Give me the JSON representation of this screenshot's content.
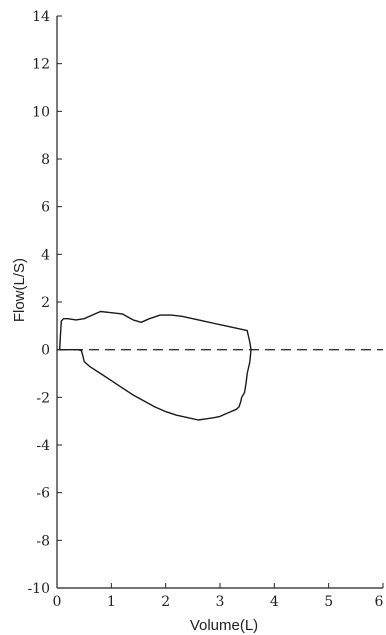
{
  "chart_data": {
    "type": "line",
    "title": "",
    "xlabel": "Volume(L)",
    "ylabel": "Flow(L/S)",
    "xlim": [
      0,
      6
    ],
    "ylim": [
      -10,
      14
    ],
    "x_ticks": [
      0,
      1,
      2,
      3,
      4,
      5,
      6
    ],
    "x_tick_labels": [
      "0",
      "1",
      "2",
      "3",
      "4",
      "5",
      "6"
    ],
    "y_ticks": [
      -10,
      -8,
      -6,
      -4,
      -2,
      0,
      2,
      4,
      6,
      8,
      10,
      12,
      14
    ],
    "y_tick_labels": [
      "-10",
      "-8",
      "-6",
      "-4",
      "-2",
      "0",
      "2",
      "4",
      "6",
      "8",
      "10",
      "12",
      "14"
    ],
    "reference_line": {
      "y": 0,
      "style": "dashed"
    },
    "grid": false,
    "legend": "none",
    "series": [
      {
        "x": [
          0.05,
          0.06,
          0.08,
          0.12,
          0.2,
          0.35,
          0.5,
          0.7,
          0.8,
          1.0,
          1.2,
          1.4,
          1.55,
          1.7,
          1.9,
          2.1,
          2.3,
          2.5,
          2.7,
          2.9,
          3.1,
          3.3,
          3.5,
          3.55,
          3.57,
          3.55,
          3.5,
          3.48,
          3.45,
          3.4,
          3.38,
          3.35,
          3.3,
          3.2,
          3.1,
          3.0,
          2.9,
          2.75,
          2.6,
          2.4,
          2.2,
          2.0,
          1.8,
          1.6,
          1.4,
          1.2,
          1.0,
          0.8,
          0.6,
          0.5,
          0.48,
          0.45,
          0.4,
          0.3,
          0.2,
          0.1,
          0.05,
          0.05
        ],
        "y": [
          0.0,
          0.5,
          1.2,
          1.3,
          1.3,
          1.25,
          1.3,
          1.5,
          1.6,
          1.55,
          1.5,
          1.25,
          1.15,
          1.3,
          1.45,
          1.45,
          1.4,
          1.3,
          1.2,
          1.1,
          1.0,
          0.9,
          0.8,
          0.3,
          0.0,
          -0.5,
          -1.0,
          -1.4,
          -1.8,
          -2.0,
          -2.2,
          -2.4,
          -2.5,
          -2.6,
          -2.7,
          -2.8,
          -2.85,
          -2.9,
          -2.95,
          -2.85,
          -2.75,
          -2.6,
          -2.4,
          -2.15,
          -1.9,
          -1.6,
          -1.3,
          -1.0,
          -0.7,
          -0.5,
          -0.3,
          -0.05,
          0.0,
          0.0,
          0.0,
          0.0,
          0.0,
          0.0
        ]
      }
    ],
    "colors": {
      "axis": "#222222",
      "curve": "#1a1a1a",
      "zero_line": "#333333"
    }
  }
}
